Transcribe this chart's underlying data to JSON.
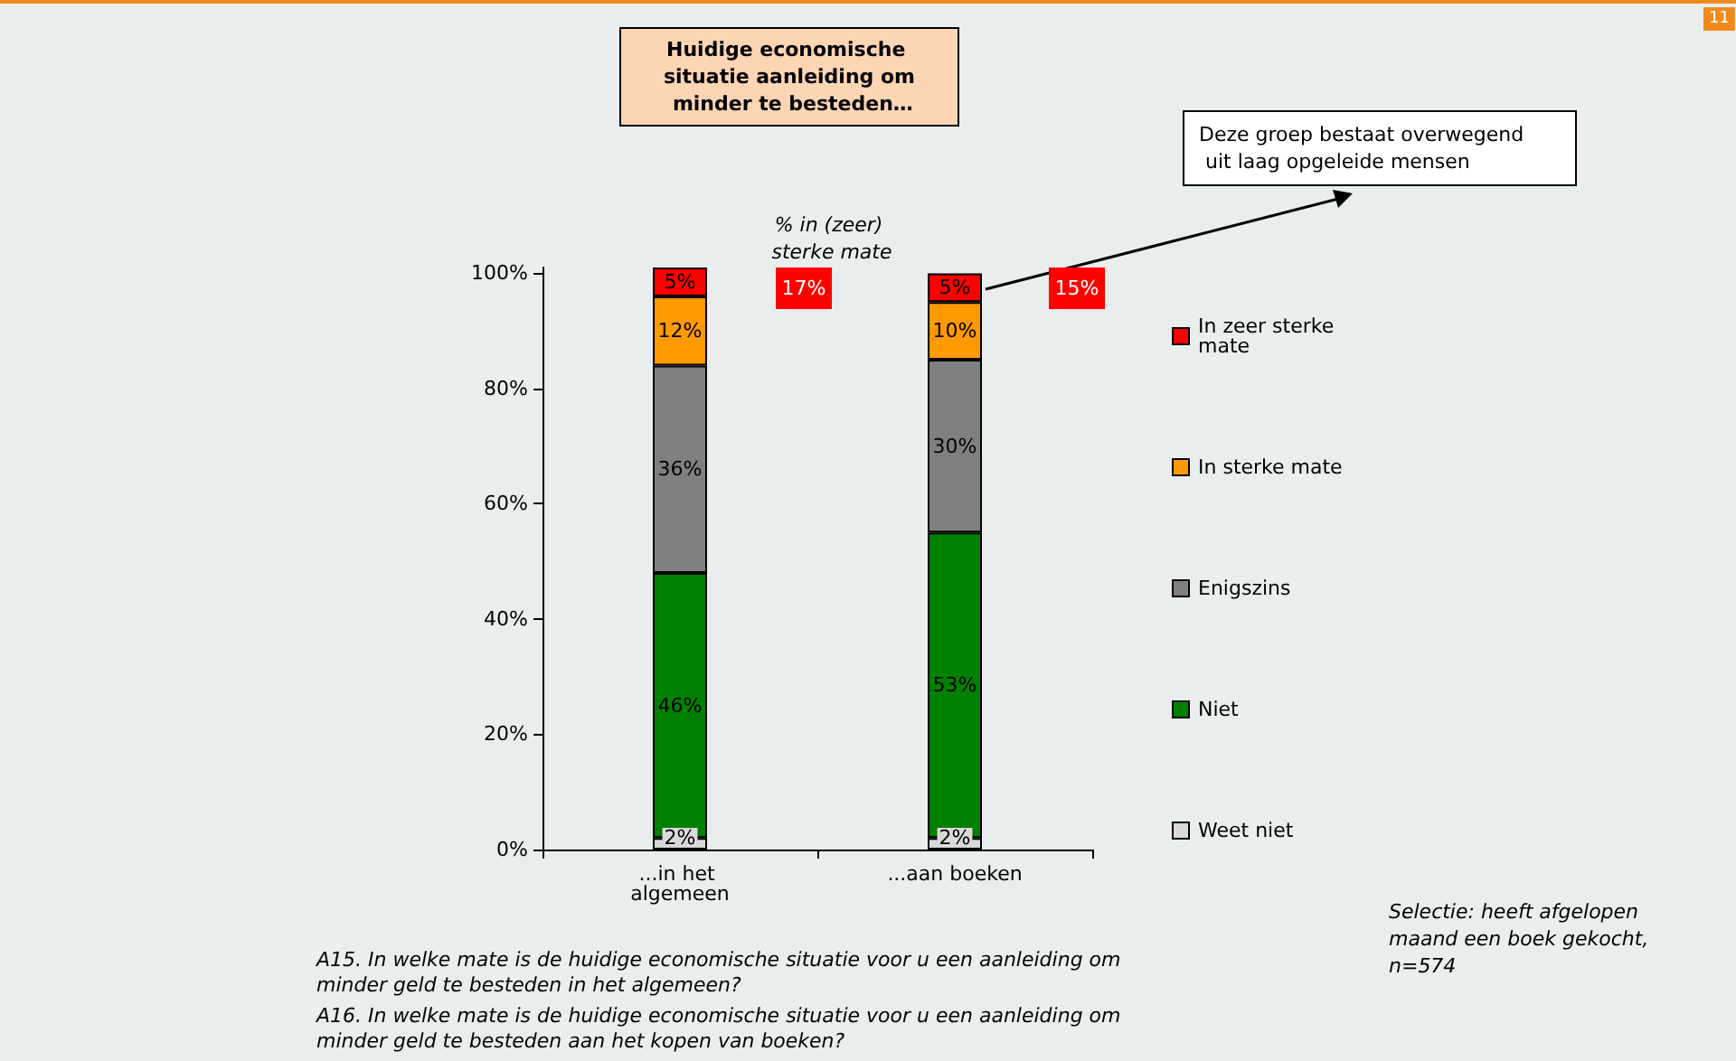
{
  "chart_data": {
    "type": "bar",
    "stacked": true,
    "title": "Huidige economische situatie aanleiding om minder te besteden…",
    "categories": [
      "...in het algemeen",
      "...aan boeken"
    ],
    "series": [
      {
        "name": "Weet niet",
        "color": "#d9d9d9",
        "values": [
          2,
          2
        ],
        "value_labels": [
          "2%",
          "2%"
        ]
      },
      {
        "name": "Niet",
        "color": "#008000",
        "values": [
          46,
          53
        ],
        "value_labels": [
          "46%",
          "53%"
        ]
      },
      {
        "name": "Enigszins",
        "color": "#808080",
        "values": [
          36,
          30
        ],
        "value_labels": [
          "36%",
          "30%"
        ]
      },
      {
        "name": "In sterke mate",
        "color": "#ff9900",
        "values": [
          12,
          10
        ],
        "value_labels": [
          "12%",
          "10%"
        ]
      },
      {
        "name": "In zeer sterke mate",
        "color": "#ff0000",
        "values": [
          5,
          5
        ],
        "value_labels": [
          "5%",
          "5%"
        ]
      }
    ],
    "ylim": [
      0,
      101
    ],
    "yticks": [
      {
        "value": 0,
        "label": "0%"
      },
      {
        "value": 20,
        "label": "20%"
      },
      {
        "value": 40,
        "label": "40%"
      },
      {
        "value": 60,
        "label": "60%"
      },
      {
        "value": 80,
        "label": "80%"
      },
      {
        "value": 100,
        "label": "100%"
      }
    ],
    "grid": false,
    "legend": "right",
    "annotations": [
      "% in (zeer) sterke mate",
      "17%",
      "15%",
      "Deze groep bestaat overwegend uit laag opgeleide mensen",
      "Selectie: heeft afgelopen maand een boek gekocht, n=574",
      "A15. In welke mate is de huidige economische situatie voor u een aanleiding om minder geld te besteden in het algemeen?",
      "A16. In welke mate is de huidige economische situatie voor u een aanleiding om minder geld te besteden aan het kopen van boeken?",
      "11"
    ]
  }
}
